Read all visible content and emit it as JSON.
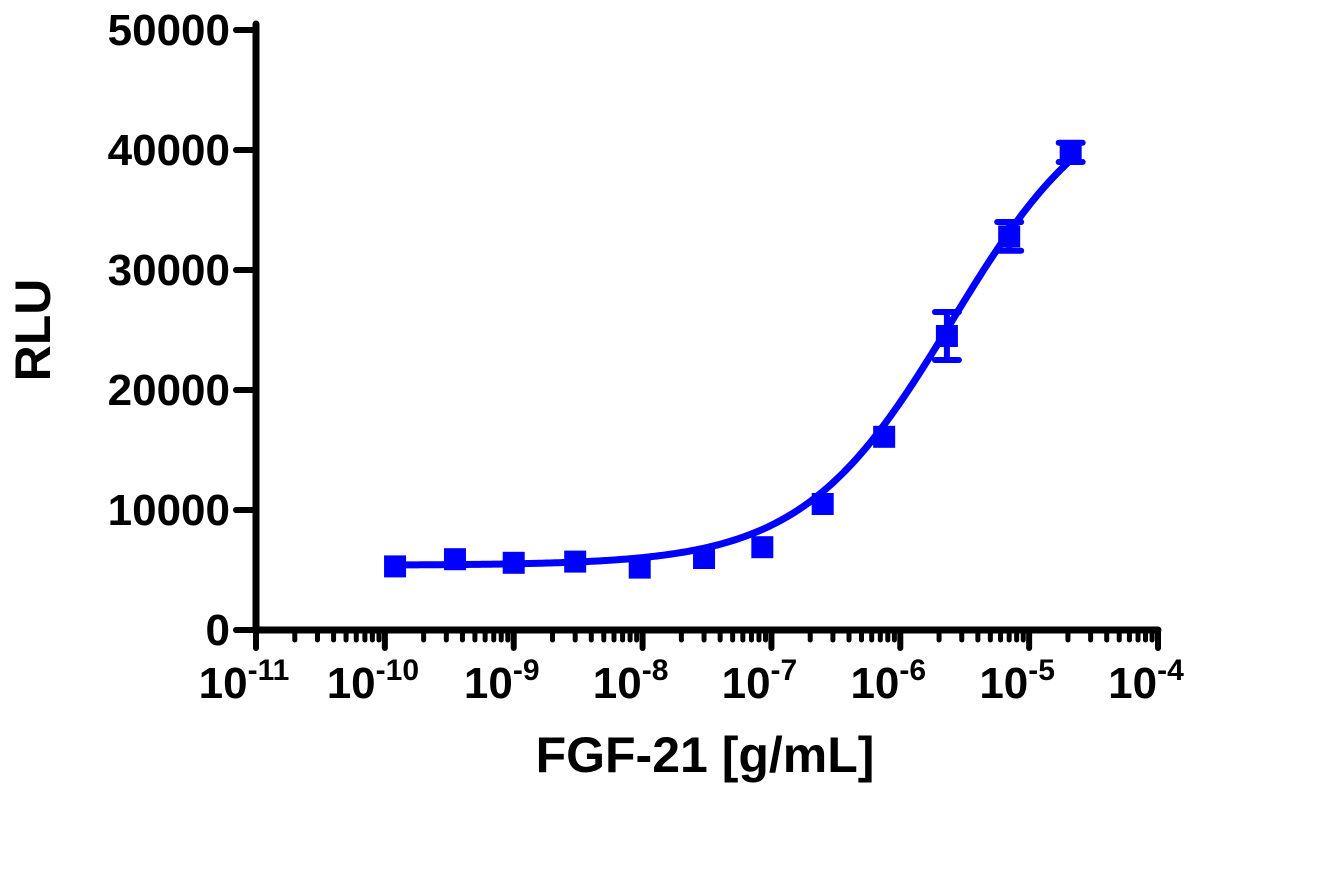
{
  "chart_data": {
    "type": "scatter",
    "title": "",
    "xlabel": "FGF-21 [g/mL]",
    "ylabel": "RLU",
    "x_scale": "log",
    "xlim": [
      1e-11,
      0.0001
    ],
    "ylim": [
      0,
      50000
    ],
    "grid": false,
    "x_ticks": [
      {
        "value": 1e-11,
        "base": "10",
        "exp": "-11"
      },
      {
        "value": 1e-10,
        "base": "10",
        "exp": "-10"
      },
      {
        "value": 1e-09,
        "base": "10",
        "exp": "-9"
      },
      {
        "value": 1e-08,
        "base": "10",
        "exp": "-8"
      },
      {
        "value": 1e-07,
        "base": "10",
        "exp": "-7"
      },
      {
        "value": 1e-06,
        "base": "10",
        "exp": "-6"
      },
      {
        "value": 1e-05,
        "base": "10",
        "exp": "-5"
      },
      {
        "value": 0.0001,
        "base": "10",
        "exp": "-4"
      }
    ],
    "y_ticks": [
      {
        "value": 0,
        "label": "0"
      },
      {
        "value": 10000,
        "label": "10000"
      },
      {
        "value": 20000,
        "label": "20000"
      },
      {
        "value": 30000,
        "label": "30000"
      },
      {
        "value": 40000,
        "label": "40000"
      },
      {
        "value": 50000,
        "label": "50000"
      }
    ],
    "series": [
      {
        "name": "FGF-21",
        "color": "#0000ff",
        "marker": "square",
        "x": [
          1.2e-10,
          3.5e-10,
          1e-09,
          3e-09,
          9.5e-09,
          3e-08,
          8.5e-08,
          2.5e-07,
          7.5e-07,
          2.3e-06,
          7e-06,
          2.1e-05
        ],
        "y": [
          5300,
          5900,
          5600,
          5700,
          5200,
          6000,
          6900,
          10500,
          16100,
          24500,
          32800,
          39800
        ],
        "err": [
          0,
          0,
          0,
          0,
          0,
          0,
          0,
          0,
          0,
          2000,
          1200,
          800
        ],
        "fit": {
          "model": "4PL",
          "bottom": 5400,
          "top": 46000,
          "ec50": 2.5e-06,
          "hill": 0.75
        }
      }
    ]
  }
}
